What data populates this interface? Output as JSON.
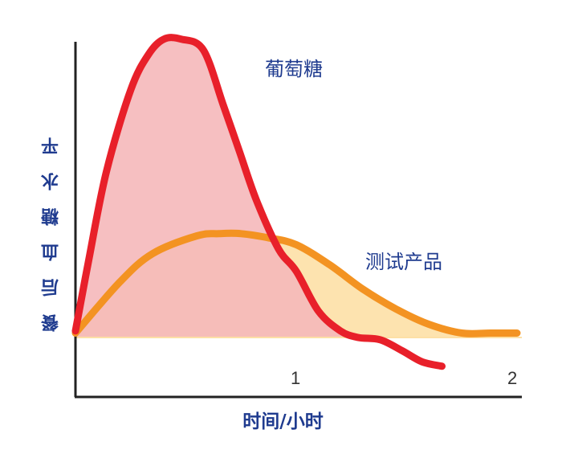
{
  "chart_data": {
    "type": "area",
    "xlabel": "时间/小时",
    "ylabel": "餐后血糖水平",
    "x_ticks": [
      "1",
      "2"
    ],
    "xlim": [
      0,
      2
    ],
    "baseline": 0,
    "grid": false,
    "legend": "none",
    "series": [
      {
        "name": "葡萄糖",
        "color": "#e8202a",
        "fill": "#f5b8ba",
        "x": [
          0,
          0.06,
          0.14,
          0.25,
          0.33,
          0.4,
          0.48,
          0.58,
          0.67,
          0.74,
          0.82,
          0.92,
          1.0,
          1.1,
          1.2,
          1.28,
          1.38,
          1.48,
          1.57,
          1.66
        ],
        "y": [
          0.03,
          0.35,
          0.75,
          1.12,
          1.28,
          1.35,
          1.35,
          1.3,
          1.05,
          0.85,
          0.62,
          0.4,
          0.3,
          0.12,
          0.03,
          0.0,
          -0.01,
          -0.06,
          -0.11,
          -0.13
        ]
      },
      {
        "name": "测试产品",
        "color": "#f39322",
        "fill": "#fde0a6",
        "x": [
          0,
          0.2,
          0.35,
          0.55,
          0.65,
          0.75,
          0.88,
          1.0,
          1.15,
          1.3,
          1.45,
          1.6,
          1.75,
          1.88,
          2.0
        ],
        "y": [
          0.02,
          0.25,
          0.38,
          0.46,
          0.47,
          0.47,
          0.45,
          0.42,
          0.33,
          0.22,
          0.13,
          0.06,
          0.02,
          0.02,
          0.02
        ]
      }
    ]
  },
  "labels": {
    "glucose": "葡萄糖",
    "test_product": "测试产品",
    "xlabel": "时间/小时",
    "ylabel": "餐后血糖水平",
    "xtick_1": "1",
    "xtick_2": "2"
  }
}
